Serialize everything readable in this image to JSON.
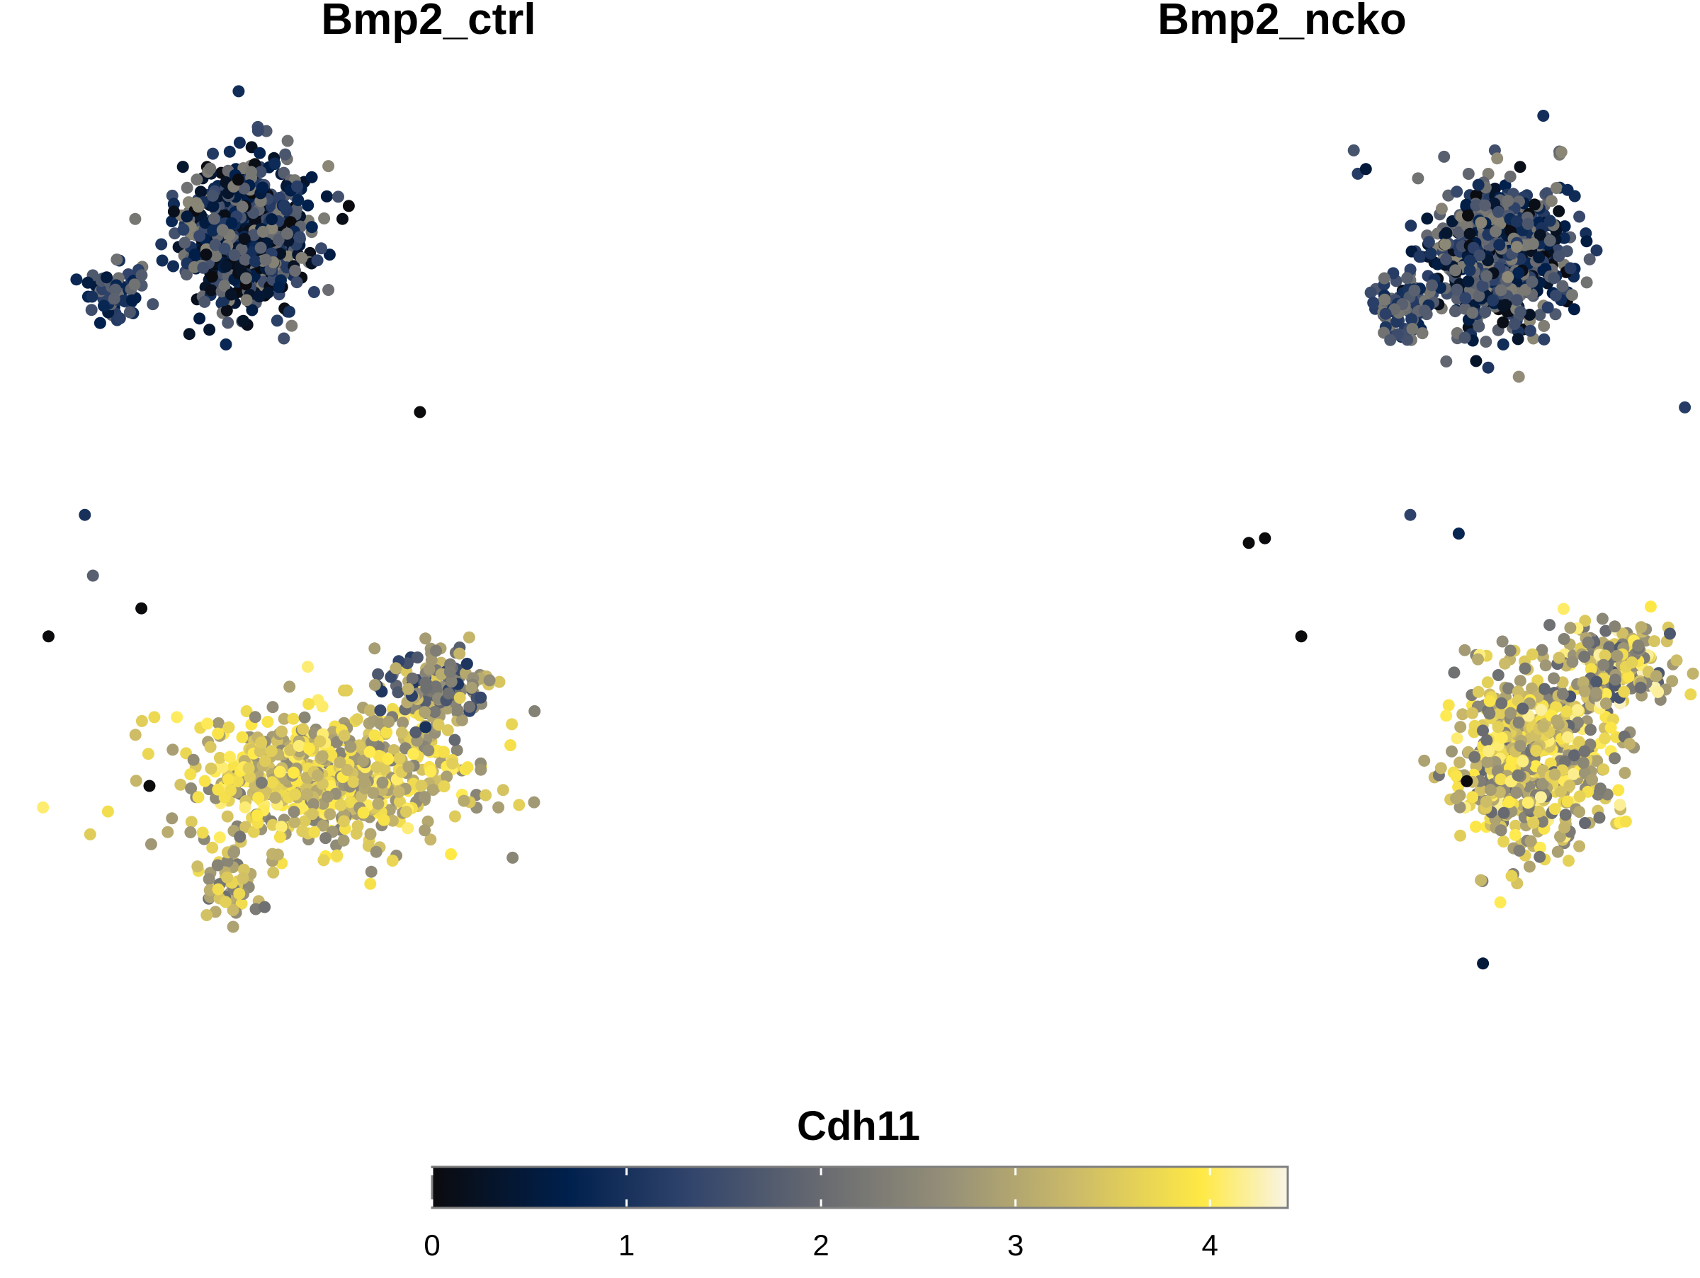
{
  "chart_data": [
    {
      "type": "scatter",
      "title": "Bmp2_ctrl",
      "xlim": [
        -10,
        10
      ],
      "ylim": [
        -10,
        10
      ],
      "grid": false,
      "clusters": [
        {
          "cx": -4.6,
          "cy": 6.8,
          "sx": 1.05,
          "sy": 1.05,
          "n": 720,
          "emin": 0.0,
          "emax": 2.5,
          "bias": 1.3
        },
        {
          "cx": -7.9,
          "cy": 5.5,
          "sx": 0.45,
          "sy": 0.38,
          "n": 70,
          "emin": 0.5,
          "emax": 2.2,
          "bias": 1.0
        },
        {
          "cx": -2.5,
          "cy": -4.8,
          "sx": 2.3,
          "sy": 1.0,
          "n": 650,
          "emin": 2.2,
          "emax": 4.1,
          "bias": 0.7
        },
        {
          "cx": 0.2,
          "cy": -2.9,
          "sx": 0.9,
          "sy": 0.55,
          "n": 160,
          "emin": 1.0,
          "emax": 3.6,
          "bias": 0.9
        },
        {
          "cx": -5.0,
          "cy": -7.0,
          "sx": 0.55,
          "sy": 0.6,
          "n": 60,
          "emin": 2.0,
          "emax": 3.8,
          "bias": 0.8
        }
      ],
      "stray_points": [
        {
          "x": -0.3,
          "y": 3.0,
          "e": 0.0
        },
        {
          "x": -8.6,
          "y": 0.8,
          "e": 1.0
        },
        {
          "x": -8.4,
          "y": -0.5,
          "e": 1.8
        },
        {
          "x": -7.2,
          "y": -1.2,
          "e": 0.0
        },
        {
          "x": -9.5,
          "y": -1.8,
          "e": 0.0
        },
        {
          "x": -7.0,
          "y": -5.0,
          "e": 0.0
        }
      ]
    },
    {
      "type": "scatter",
      "title": "Bmp2_ncko",
      "xlim": [
        -10,
        10
      ],
      "ylim": [
        -10,
        10
      ],
      "grid": false,
      "clusters": [
        {
          "cx": 5.2,
          "cy": 6.4,
          "sx": 1.05,
          "sy": 1.05,
          "n": 700,
          "emin": 0.0,
          "emax": 2.6,
          "bias": 1.0
        },
        {
          "cx": 2.8,
          "cy": 5.2,
          "sx": 0.45,
          "sy": 0.5,
          "n": 90,
          "emin": 0.8,
          "emax": 2.3,
          "bias": 1.0
        },
        {
          "cx": 6.0,
          "cy": -4.4,
          "sx": 1.3,
          "sy": 1.2,
          "n": 600,
          "emin": 1.8,
          "emax": 4.2,
          "bias": 0.7
        },
        {
          "cx": 8.2,
          "cy": -2.4,
          "sx": 0.9,
          "sy": 0.6,
          "n": 200,
          "emin": 1.5,
          "emax": 4.3,
          "bias": 0.8
        }
      ],
      "stray_points": [
        {
          "x": 1.6,
          "y": 8.6,
          "e": 1.6
        },
        {
          "x": 1.7,
          "y": 8.1,
          "e": 1.2
        },
        {
          "x": 1.9,
          "y": 8.2,
          "e": 0.5
        },
        {
          "x": 9.8,
          "y": 3.1,
          "e": 1.2
        },
        {
          "x": 3.0,
          "y": 0.8,
          "e": 1.3
        },
        {
          "x": 4.2,
          "y": 0.4,
          "e": 0.8
        },
        {
          "x": -1.0,
          "y": 0.2,
          "e": 0.0
        },
        {
          "x": -0.6,
          "y": 0.3,
          "e": 0.0
        },
        {
          "x": 0.3,
          "y": -1.8,
          "e": 0.0
        },
        {
          "x": 4.4,
          "y": -4.9,
          "e": 0.0
        },
        {
          "x": 4.8,
          "y": -8.8,
          "e": 0.5
        }
      ]
    }
  ],
  "legend": {
    "title": "Cdh11",
    "range": [
      0,
      4.4
    ],
    "ticks": [
      "0",
      "1",
      "2",
      "3",
      "4"
    ],
    "tick_values": [
      0,
      1,
      2,
      3,
      4
    ],
    "colors": [
      "#0b0b0e",
      "#00204d",
      "#31446b",
      "#666970",
      "#958f78",
      "#cbba69",
      "#ffe945",
      "#f8f4e6"
    ],
    "color_stops": [
      0,
      0.16,
      0.3,
      0.45,
      0.6,
      0.75,
      0.9,
      1.0
    ]
  }
}
